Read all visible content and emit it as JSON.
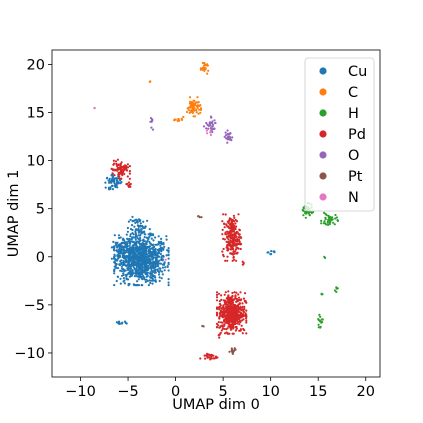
{
  "chart_data": {
    "type": "scatter",
    "xlabel": "UMAP dim 0",
    "ylabel": "UMAP dim 1",
    "xlim": [
      -13,
      21.5
    ],
    "ylim": [
      -12.5,
      21.5
    ],
    "xticks": [
      -10,
      -5,
      0,
      5,
      10,
      15,
      20
    ],
    "yticks": [
      -10,
      -5,
      0,
      5,
      10,
      15,
      20
    ],
    "xtick_labels": [
      "−10",
      "−5",
      "0",
      "5",
      "10",
      "15",
      "20"
    ],
    "ytick_labels": [
      "−10",
      "−5",
      "0",
      "5",
      "10",
      "15",
      "20"
    ],
    "legend_position": "top-right",
    "series": [
      {
        "name": "Cu",
        "color": "#1f77b4",
        "clusters": [
          {
            "cx": -3.6,
            "cy": -0.3,
            "sx": 1.3,
            "sy": 1.2,
            "n": 900
          },
          {
            "cx": -5.6,
            "cy": 0.7,
            "sx": 0.5,
            "sy": 0.7,
            "n": 120
          },
          {
            "cx": -3.7,
            "cy": 2.9,
            "sx": 0.6,
            "sy": 0.6,
            "n": 70
          },
          {
            "cx": -6.5,
            "cy": 7.8,
            "sx": 0.4,
            "sy": 0.35,
            "n": 60
          },
          {
            "cx": -5.8,
            "cy": -6.9,
            "sx": 0.3,
            "sy": 0.12,
            "n": 15
          },
          {
            "cx": 10.0,
            "cy": 0.5,
            "sx": 0.25,
            "sy": 0.1,
            "n": 8
          },
          {
            "cx": -1.5,
            "cy": 1.0,
            "sx": 0.2,
            "sy": 0.3,
            "n": 10
          }
        ]
      },
      {
        "name": "C",
        "color": "#ff7f0e",
        "clusters": [
          {
            "cx": 1.9,
            "cy": 15.6,
            "sx": 0.35,
            "sy": 0.45,
            "n": 70
          },
          {
            "cx": 3.1,
            "cy": 19.6,
            "sx": 0.2,
            "sy": 0.25,
            "n": 25
          },
          {
            "cx": 0.4,
            "cy": 14.2,
            "sx": 0.25,
            "sy": 0.15,
            "n": 10
          },
          {
            "cx": -2.7,
            "cy": 18.2,
            "sx": 0.05,
            "sy": 0.05,
            "n": 2
          }
        ]
      },
      {
        "name": "H",
        "color": "#2ca02c",
        "clusters": [
          {
            "cx": 13.8,
            "cy": 4.8,
            "sx": 0.3,
            "sy": 0.35,
            "n": 45
          },
          {
            "cx": 16.2,
            "cy": 3.8,
            "sx": 0.4,
            "sy": 0.35,
            "n": 40
          },
          {
            "cx": 15.2,
            "cy": -6.7,
            "sx": 0.15,
            "sy": 0.3,
            "n": 15
          },
          {
            "cx": 16.8,
            "cy": -3.4,
            "sx": 0.12,
            "sy": 0.15,
            "n": 6
          },
          {
            "cx": 15.4,
            "cy": -3.9,
            "sx": 0.05,
            "sy": 0.05,
            "n": 3
          },
          {
            "cx": 15.7,
            "cy": -0.1,
            "sx": 0.05,
            "sy": 0.05,
            "n": 2
          }
        ]
      },
      {
        "name": "Pd",
        "color": "#d62728",
        "clusters": [
          {
            "cx": 5.9,
            "cy": -5.8,
            "sx": 0.7,
            "sy": 1.0,
            "n": 500
          },
          {
            "cx": 5.9,
            "cy": 2.0,
            "sx": 0.45,
            "sy": 1.1,
            "n": 220
          },
          {
            "cx": -5.8,
            "cy": 9.1,
            "sx": 0.45,
            "sy": 0.45,
            "n": 80
          },
          {
            "cx": 3.5,
            "cy": -10.4,
            "sx": 0.45,
            "sy": 0.2,
            "n": 25
          },
          {
            "cx": -4.9,
            "cy": 7.5,
            "sx": 0.2,
            "sy": 0.2,
            "n": 8
          },
          {
            "cx": 7.1,
            "cy": -0.6,
            "sx": 0.1,
            "sy": 0.1,
            "n": 4
          },
          {
            "cx": 4.5,
            "cy": -8.2,
            "sx": 0.1,
            "sy": 0.15,
            "n": 4
          }
        ]
      },
      {
        "name": "O",
        "color": "#9467bd",
        "clusters": [
          {
            "cx": 5.6,
            "cy": 12.5,
            "sx": 0.2,
            "sy": 0.3,
            "n": 25
          },
          {
            "cx": 3.6,
            "cy": 13.7,
            "sx": 0.35,
            "sy": 0.4,
            "n": 30
          },
          {
            "cx": -2.5,
            "cy": 13.8,
            "sx": 0.08,
            "sy": 0.35,
            "n": 8
          }
        ]
      },
      {
        "name": "Pt",
        "color": "#8c564b",
        "clusters": [
          {
            "cx": 6.0,
            "cy": -9.9,
            "sx": 0.2,
            "sy": 0.2,
            "n": 15
          },
          {
            "cx": 2.5,
            "cy": 4.2,
            "sx": 0.1,
            "sy": 0.1,
            "n": 4
          },
          {
            "cx": 2.9,
            "cy": -7.2,
            "sx": 0.05,
            "sy": 0.05,
            "n": 2
          }
        ]
      },
      {
        "name": "N",
        "color": "#e377c2",
        "clusters": [
          {
            "cx": -8.5,
            "cy": 15.5,
            "sx": 0.05,
            "sy": 0.05,
            "n": 2
          },
          {
            "cx": 3.6,
            "cy": 12.8,
            "sx": 0.15,
            "sy": 0.15,
            "n": 6
          },
          {
            "cx": -1.0,
            "cy": -0.3,
            "sx": 0.05,
            "sy": 0.05,
            "n": 1
          }
        ]
      }
    ]
  }
}
